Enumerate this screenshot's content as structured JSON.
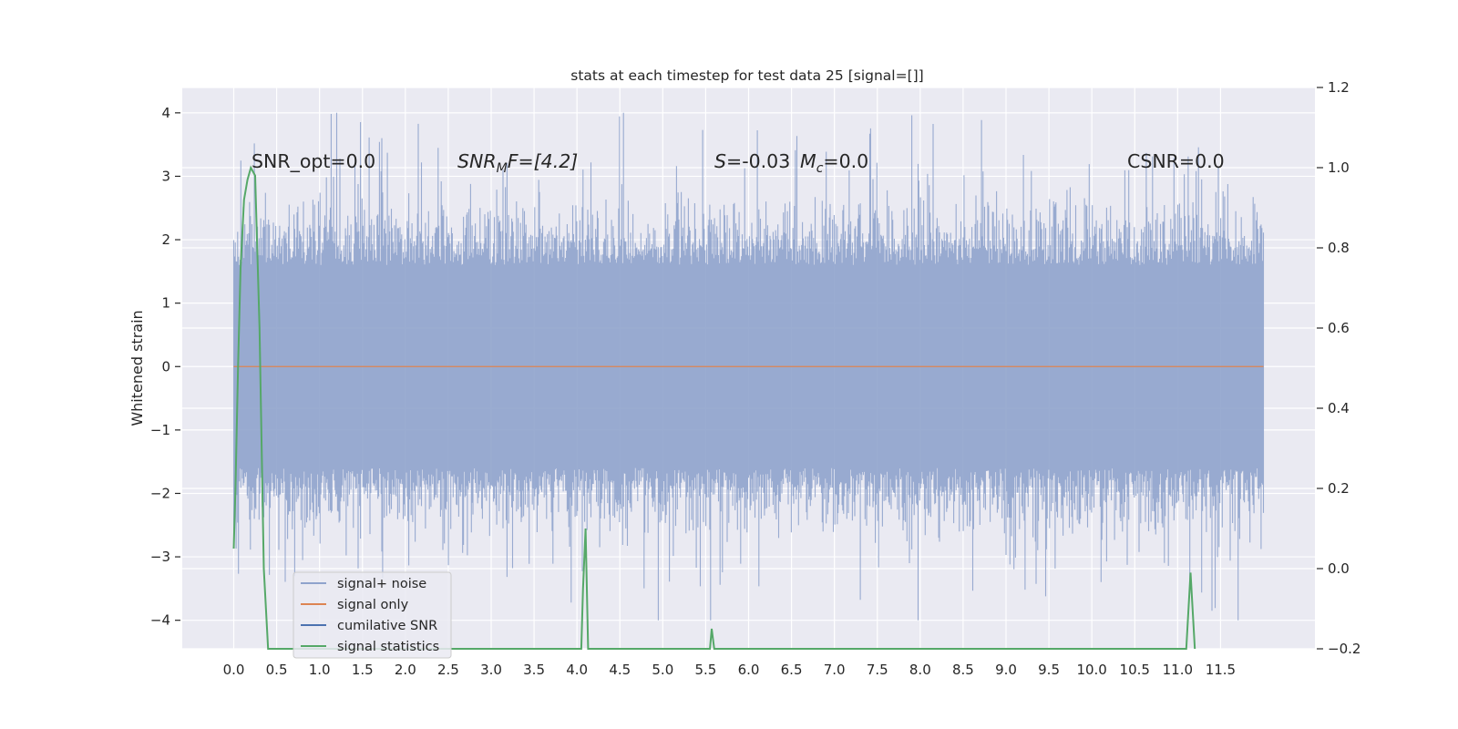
{
  "chart_data": {
    "type": "line",
    "title": "stats at each timestep for test data 25 [signal=[]]",
    "ylabel": "Whitened strain",
    "xlabel": "",
    "xlim": [
      -0.6,
      12.6
    ],
    "ylim": [
      -4.45,
      4.4
    ],
    "y2lim": [
      -0.2,
      1.2
    ],
    "x_ticks": [
      "0.0",
      "0.5",
      "1.0",
      "1.5",
      "2.0",
      "2.5",
      "3.0",
      "3.5",
      "4.0",
      "4.5",
      "5.0",
      "5.5",
      "6.0",
      "6.5",
      "7.0",
      "7.5",
      "8.0",
      "8.5",
      "9.0",
      "9.5",
      "10.0",
      "10.5",
      "11.0",
      "11.5"
    ],
    "y_ticks": [
      "4",
      "3",
      "2",
      "1",
      "0",
      "−1",
      "−2",
      "−3",
      "−4"
    ],
    "y2_ticks": [
      "1.2",
      "1.0",
      "0.8",
      "0.6",
      "0.4",
      "0.2",
      "0.0",
      "−0.2"
    ],
    "grid": true,
    "legend_position": "lower-left",
    "annotations": {
      "snr_opt": "SNR_opt=0.0",
      "snr_mf_main": "SNR",
      "snr_mf_sub": "M",
      "snr_mf_rest": "F=[4.2]",
      "s_main": "S",
      "s_val": "=-0.03",
      "mc_main": "M",
      "mc_sub": "c",
      "mc_val": "=0.0",
      "csnr": "CSNR=0.0"
    },
    "series": [
      {
        "name": "signal+ noise",
        "color": "#8fa3cc",
        "x_range": [
          0.0,
          12.0
        ],
        "envelope_typical": [
          -2.0,
          2.0
        ],
        "extremes": [
          -4.0,
          4.0
        ]
      },
      {
        "name": "signal only",
        "color": "#dd8452",
        "x": [
          0.0,
          12.0
        ],
        "y": [
          0.0,
          0.0
        ]
      },
      {
        "name": "cumilative SNR",
        "color": "#4c72b0",
        "x": [],
        "y": []
      },
      {
        "name": "signal statistics",
        "color": "#55a868",
        "axis": "right",
        "x": [
          0.0,
          0.02,
          0.05,
          0.08,
          0.12,
          0.16,
          0.2,
          0.25,
          0.3,
          0.35,
          0.4,
          4.05,
          4.07,
          4.1,
          4.13,
          5.55,
          5.57,
          5.6,
          11.1,
          11.15,
          11.2
        ],
        "y": [
          0.05,
          0.2,
          0.5,
          0.75,
          0.92,
          0.97,
          1.0,
          0.98,
          0.6,
          0.0,
          -0.2,
          -0.2,
          -0.05,
          0.1,
          -0.2,
          -0.2,
          -0.15,
          -0.2,
          -0.2,
          -0.01,
          -0.2
        ]
      }
    ]
  }
}
